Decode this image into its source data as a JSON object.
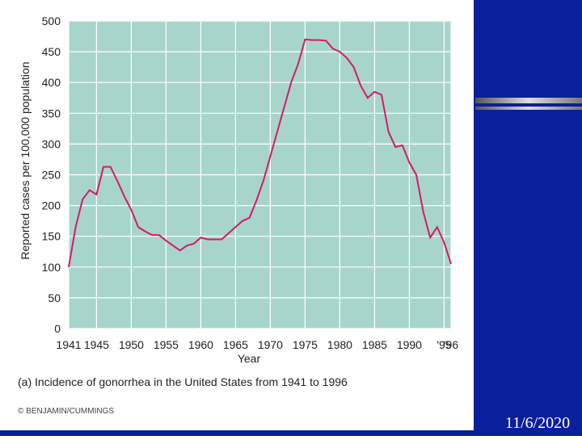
{
  "chart_data": {
    "type": "line",
    "caption": "(a) Incidence of gonorrhea in the United States from 1941 to 1996",
    "credit": "© BENJAMIN/CUMMINGS",
    "date": "11/6/2020",
    "xlabel": "Year",
    "ylabel": "Reported cases per 100,000 population",
    "x": [
      1941,
      1942,
      1943,
      1944,
      1945,
      1946,
      1947,
      1948,
      1949,
      1950,
      1951,
      1952,
      1953,
      1954,
      1955,
      1956,
      1957,
      1958,
      1959,
      1960,
      1961,
      1962,
      1963,
      1964,
      1965,
      1966,
      1967,
      1968,
      1969,
      1970,
      1971,
      1972,
      1973,
      1974,
      1975,
      1976,
      1977,
      1978,
      1979,
      1980,
      1981,
      1982,
      1983,
      1984,
      1985,
      1986,
      1987,
      1988,
      1989,
      1990,
      1991,
      1992,
      1993,
      1994,
      1995,
      1996
    ],
    "series": [
      {
        "name": "Gonorrhea incidence",
        "color": "#d6196b",
        "values": [
          100,
          165,
          210,
          225,
          218,
          263,
          263,
          240,
          215,
          193,
          165,
          158,
          152,
          152,
          143,
          135,
          127,
          135,
          138,
          148,
          145,
          145,
          145,
          155,
          165,
          175,
          180,
          208,
          240,
          280,
          320,
          360,
          400,
          430,
          470,
          469,
          469,
          468,
          455,
          450,
          440,
          425,
          395,
          375,
          385,
          380,
          320,
          295,
          298,
          270,
          250,
          190,
          148,
          165,
          140,
          105
        ]
      }
    ],
    "xlim": [
      1941,
      1996
    ],
    "xticks": [
      1941,
      1945,
      1950,
      1955,
      1960,
      1965,
      1970,
      1975,
      1980,
      1985,
      1990,
      {
        "value": 1995,
        "label": "'95"
      },
      {
        "value": 1996,
        "label": "'96"
      }
    ],
    "ylim": [
      0,
      500
    ],
    "yticks": [
      0,
      50,
      100,
      150,
      200,
      250,
      300,
      350,
      400,
      450,
      500
    ],
    "grid": true,
    "plot_color": "#a7d5cc"
  }
}
